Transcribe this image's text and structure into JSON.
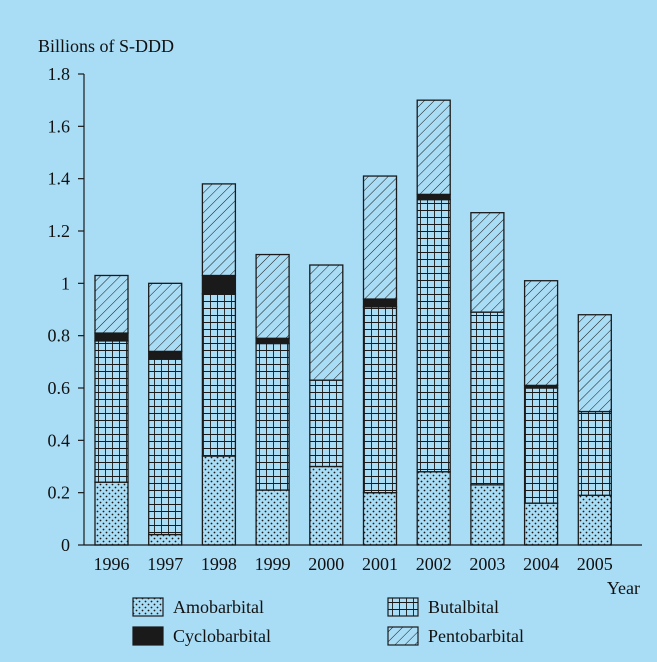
{
  "chart_data": {
    "type": "bar",
    "stacked": true,
    "ylabel": "Billions of S-DDD",
    "xlabel": "Year",
    "ylim": [
      0,
      1.8
    ],
    "yticks": [
      0,
      0.2,
      0.4,
      0.6,
      0.8,
      1,
      1.2,
      1.4,
      1.6,
      1.8
    ],
    "categories": [
      "1996",
      "1997",
      "1998",
      "1999",
      "2000",
      "2001",
      "2002",
      "2003",
      "2004",
      "2005"
    ],
    "series": [
      {
        "name": "Amobarbital",
        "pattern": "dots",
        "values": [
          0.24,
          0.04,
          0.34,
          0.21,
          0.3,
          0.2,
          0.28,
          0.23,
          0.16,
          0.19
        ]
      },
      {
        "name": "Butalbital",
        "pattern": "grid",
        "values": [
          0.54,
          0.67,
          0.62,
          0.56,
          0.33,
          0.71,
          1.04,
          0.66,
          0.44,
          0.32
        ]
      },
      {
        "name": "Cyclobarbital",
        "pattern": "solid",
        "values": [
          0.03,
          0.03,
          0.07,
          0.02,
          0.0,
          0.03,
          0.02,
          0.0,
          0.01,
          0.0
        ]
      },
      {
        "name": "Pentobarbital",
        "pattern": "hatch",
        "values": [
          0.22,
          0.26,
          0.35,
          0.32,
          0.44,
          0.47,
          0.36,
          0.38,
          0.4,
          0.37
        ]
      }
    ],
    "legend_position": "bottom",
    "grid": false,
    "colors": {
      "background": "#a9dcf5",
      "bar_stroke": "#1a1a1a",
      "cyclobarbital": "#1a1a1a"
    }
  }
}
